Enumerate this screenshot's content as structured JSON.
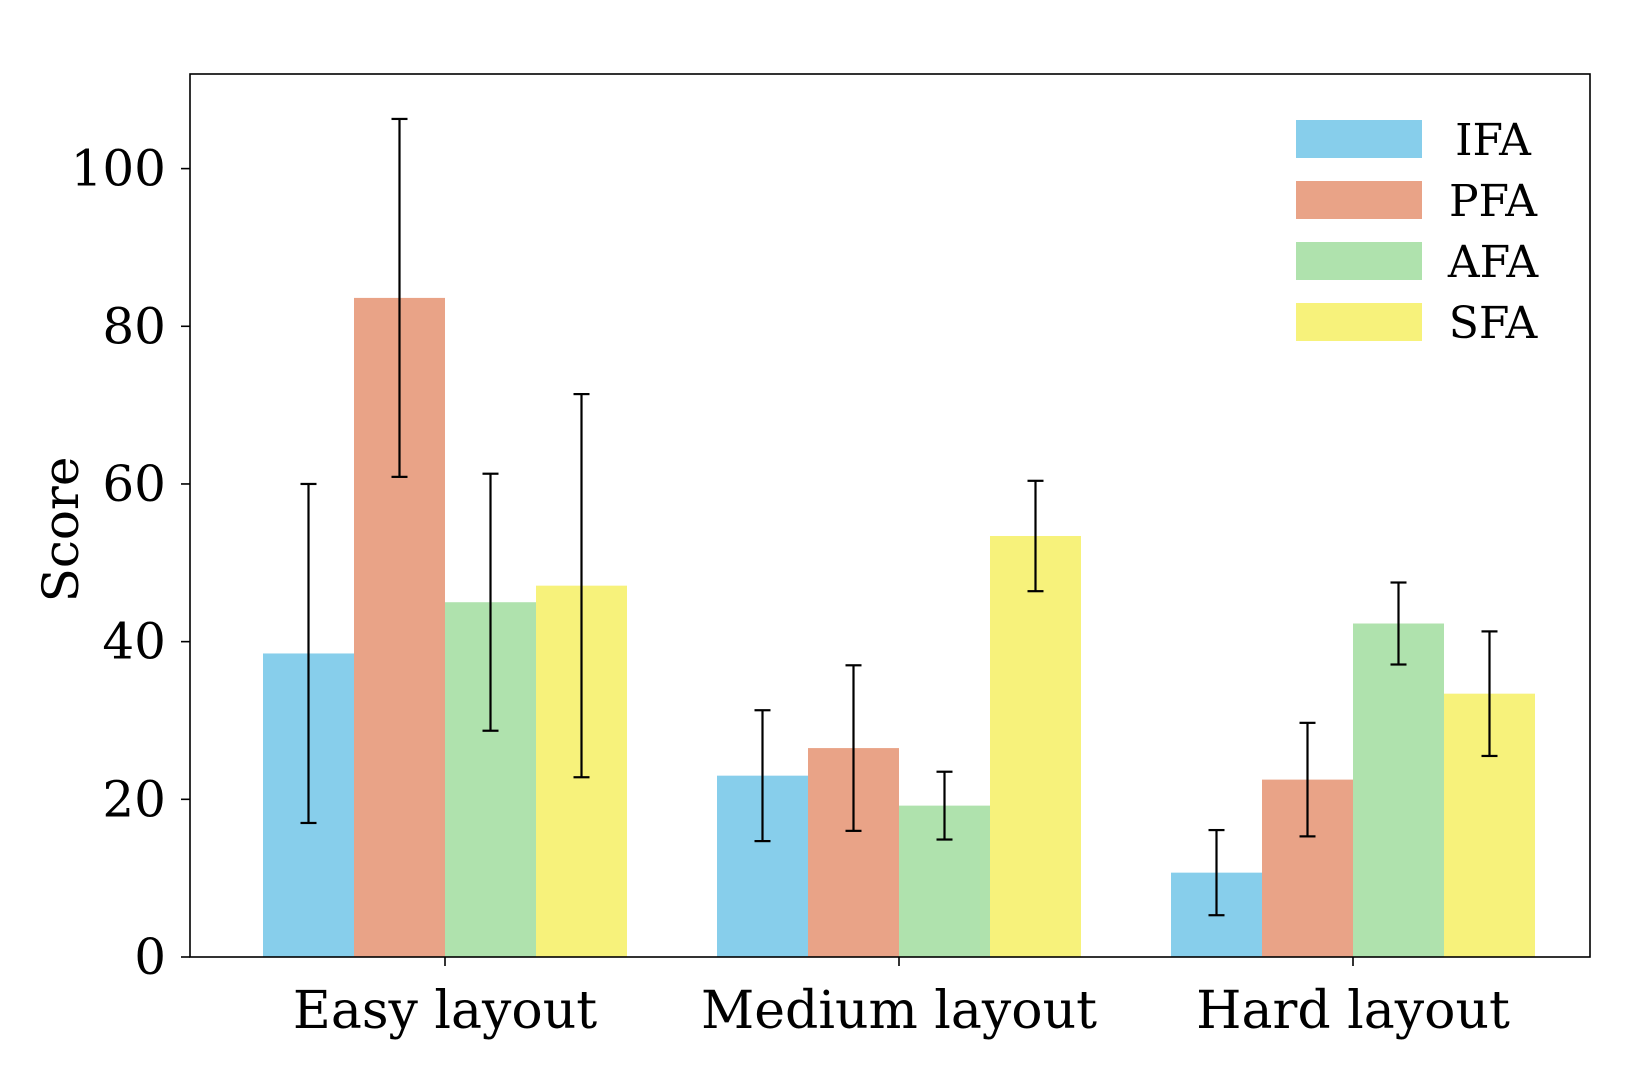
{
  "chart_data": {
    "type": "bar",
    "title": "",
    "xlabel": "",
    "ylabel": "Score",
    "categories": [
      "Easy layout",
      "Medium layout",
      "Hard layout"
    ],
    "ylim": [
      0,
      112
    ],
    "yticks": [
      0,
      20,
      40,
      60,
      80,
      100
    ],
    "grid": false,
    "legend_position": "top-right",
    "series": [
      {
        "name": "IFA",
        "color": "#87ceeb",
        "values": [
          38.5,
          23.0,
          10.7
        ],
        "err": [
          21.5,
          8.3,
          5.4
        ]
      },
      {
        "name": "PFA",
        "color": "#e9a387",
        "values": [
          83.6,
          26.5,
          22.5
        ],
        "err": [
          22.7,
          10.5,
          7.2
        ]
      },
      {
        "name": "AFA",
        "color": "#afe2ad",
        "values": [
          45.0,
          19.2,
          42.3
        ],
        "err": [
          16.3,
          4.3,
          5.2
        ]
      },
      {
        "name": "SFA",
        "color": "#f7f27b",
        "values": [
          47.1,
          53.4,
          33.4
        ],
        "err": [
          24.3,
          7.0,
          7.9
        ]
      }
    ]
  }
}
